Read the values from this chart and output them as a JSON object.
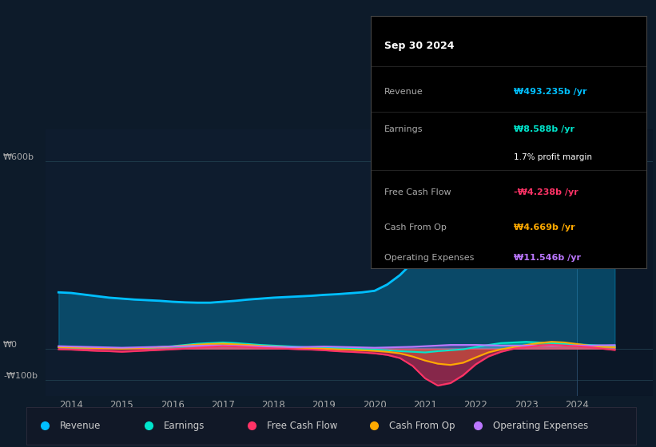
{
  "background_color": "#0d1b2a",
  "plot_bg_color": "#0e1c2e",
  "ylabel_text": "₩0",
  "y600_text": "₩600b",
  "ym100_text": "-₩100b",
  "ylim": [
    -150,
    700
  ],
  "xlim": [
    2013.5,
    2025.5
  ],
  "xticks": [
    2014,
    2015,
    2016,
    2017,
    2018,
    2019,
    2020,
    2021,
    2022,
    2023,
    2024
  ],
  "grid_color": "#1e3a4a",
  "years": [
    2013.75,
    2014.0,
    2014.25,
    2014.5,
    2014.75,
    2015.0,
    2015.25,
    2015.5,
    2015.75,
    2016.0,
    2016.25,
    2016.5,
    2016.75,
    2017.0,
    2017.25,
    2017.5,
    2017.75,
    2018.0,
    2018.25,
    2018.5,
    2018.75,
    2019.0,
    2019.25,
    2019.5,
    2019.75,
    2020.0,
    2020.25,
    2020.5,
    2020.75,
    2021.0,
    2021.25,
    2021.5,
    2021.75,
    2022.0,
    2022.25,
    2022.5,
    2022.75,
    2023.0,
    2023.25,
    2023.5,
    2023.75,
    2024.0,
    2024.25,
    2024.5,
    2024.75
  ],
  "revenue": [
    180,
    178,
    173,
    168,
    163,
    160,
    157,
    155,
    153,
    150,
    148,
    147,
    147,
    150,
    153,
    157,
    160,
    163,
    165,
    167,
    169,
    172,
    174,
    177,
    180,
    185,
    205,
    235,
    275,
    320,
    375,
    445,
    520,
    595,
    635,
    655,
    645,
    620,
    585,
    540,
    500,
    465,
    478,
    492,
    493
  ],
  "earnings": [
    5,
    4,
    3,
    2,
    2,
    1,
    2,
    3,
    5,
    8,
    12,
    16,
    18,
    20,
    18,
    15,
    12,
    10,
    8,
    6,
    4,
    3,
    2,
    1,
    -1,
    -3,
    -5,
    -8,
    -10,
    -12,
    -8,
    -5,
    -2,
    5,
    12,
    18,
    20,
    22,
    20,
    18,
    16,
    14,
    12,
    10,
    8.6
  ],
  "free_cash_flow": [
    -2,
    -3,
    -5,
    -7,
    -8,
    -10,
    -8,
    -6,
    -4,
    -2,
    0,
    3,
    6,
    8,
    7,
    5,
    3,
    1,
    0,
    -2,
    -3,
    -5,
    -8,
    -10,
    -12,
    -15,
    -20,
    -30,
    -55,
    -95,
    -118,
    -110,
    -85,
    -50,
    -25,
    -10,
    0,
    5,
    10,
    12,
    10,
    8,
    5,
    0,
    -4.2
  ],
  "cash_from_op": [
    5,
    4,
    3,
    2,
    1,
    0,
    1,
    3,
    5,
    7,
    10,
    13,
    15,
    16,
    14,
    12,
    9,
    7,
    5,
    3,
    1,
    0,
    -2,
    -3,
    -5,
    -7,
    -10,
    -15,
    -25,
    -38,
    -48,
    -52,
    -45,
    -28,
    -12,
    -2,
    5,
    12,
    18,
    22,
    20,
    15,
    10,
    6,
    4.7
  ],
  "operating_expenses": [
    8,
    7,
    6,
    5,
    4,
    3,
    4,
    5,
    6,
    7,
    8,
    9,
    10,
    10,
    9,
    8,
    7,
    6,
    5,
    5,
    6,
    7,
    6,
    5,
    4,
    3,
    4,
    5,
    6,
    8,
    10,
    12,
    12,
    12,
    11,
    10,
    10,
    10,
    10,
    10,
    10,
    10,
    10,
    11,
    11.5
  ],
  "revenue_color": "#00bfff",
  "earnings_color": "#00e5cc",
  "fcf_color": "#ff3366",
  "cashop_color": "#ffaa00",
  "opex_color": "#bb77ff",
  "tooltip_date": "Sep 30 2024",
  "tooltip_revenue_label": "Revenue",
  "tooltip_revenue_val": "₩493.235b /yr",
  "tooltip_earnings_label": "Earnings",
  "tooltip_earnings_val": "₩8.588b /yr",
  "tooltip_profit_margin": "1.7% profit margin",
  "tooltip_fcf_label": "Free Cash Flow",
  "tooltip_fcf_val": "-₩4.238b /yr",
  "tooltip_cashop_label": "Cash From Op",
  "tooltip_cashop_val": "₩4.669b /yr",
  "tooltip_opex_label": "Operating Expenses",
  "tooltip_opex_val": "₩11.546b /yr",
  "legend_items": [
    {
      "label": "Revenue",
      "color": "#00bfff"
    },
    {
      "label": "Earnings",
      "color": "#00e5cc"
    },
    {
      "label": "Free Cash Flow",
      "color": "#ff3366"
    },
    {
      "label": "Cash From Op",
      "color": "#ffaa00"
    },
    {
      "label": "Operating Expenses",
      "color": "#bb77ff"
    }
  ]
}
